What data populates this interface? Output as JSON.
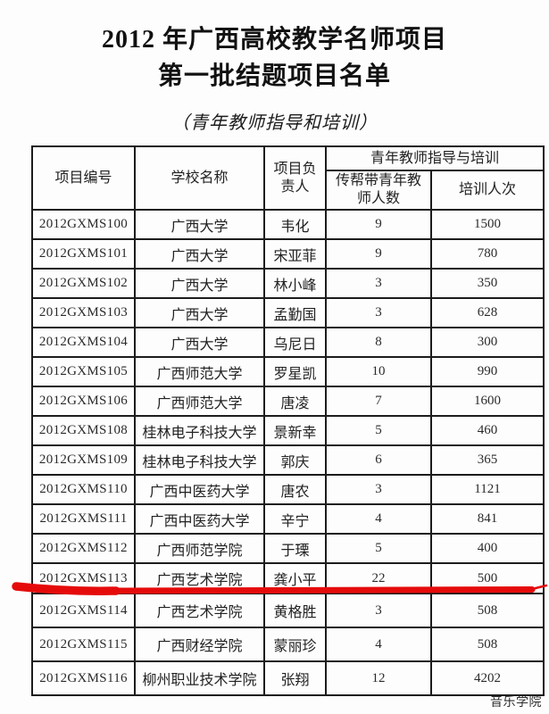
{
  "page": {
    "title_line1": "2012 年广西高校教学名师项目",
    "title_line2": "第一批结题项目名单",
    "subtitle": "（青年教师指导和培训）",
    "footer_note": "音乐学院"
  },
  "table": {
    "headers": {
      "project_code": "项目编号",
      "school": "学校名称",
      "leader": "项目负责人",
      "group": "青年教师指导与培训",
      "mentored": "传帮带青年教师人数",
      "trained": "培训人次"
    },
    "rows": [
      {
        "code": "2012GXMS100",
        "school": "广西大学",
        "leader": "韦化",
        "mentored": "9",
        "trained": "1500"
      },
      {
        "code": "2012GXMS101",
        "school": "广西大学",
        "leader": "宋亚菲",
        "mentored": "9",
        "trained": "780"
      },
      {
        "code": "2012GXMS102",
        "school": "广西大学",
        "leader": "林小峰",
        "mentored": "3",
        "trained": "350"
      },
      {
        "code": "2012GXMS103",
        "school": "广西大学",
        "leader": "孟勤国",
        "mentored": "3",
        "trained": "628"
      },
      {
        "code": "2012GXMS104",
        "school": "广西大学",
        "leader": "乌尼日",
        "mentored": "8",
        "trained": "300"
      },
      {
        "code": "2012GXMS105",
        "school": "广西师范大学",
        "leader": "罗星凯",
        "mentored": "10",
        "trained": "990"
      },
      {
        "code": "2012GXMS106",
        "school": "广西师范大学",
        "leader": "唐凌",
        "mentored": "7",
        "trained": "1600"
      },
      {
        "code": "2012GXMS108",
        "school": "桂林电子科技大学",
        "leader": "景新幸",
        "mentored": "5",
        "trained": "460"
      },
      {
        "code": "2012GXMS109",
        "school": "桂林电子科技大学",
        "leader": "郭庆",
        "mentored": "6",
        "trained": "365"
      },
      {
        "code": "2012GXMS110",
        "school": "广西中医药大学",
        "leader": "唐农",
        "mentored": "3",
        "trained": "1121"
      },
      {
        "code": "2012GXMS111",
        "school": "广西中医药大学",
        "leader": "辛宁",
        "mentored": "4",
        "trained": "841"
      },
      {
        "code": "2012GXMS112",
        "school": "广西师范学院",
        "leader": "于瑮",
        "mentored": "5",
        "trained": "400"
      },
      {
        "code": "2012GXMS113",
        "school": "广西艺术学院",
        "leader": "龚小平",
        "mentored": "22",
        "trained": "500"
      },
      {
        "code": "2012GXMS114",
        "school": "广西艺术学院",
        "leader": "黄格胜",
        "mentored": "3",
        "trained": "508"
      },
      {
        "code": "2012GXMS115",
        "school": "广西财经学院",
        "leader": "蒙丽珍",
        "mentored": "4",
        "trained": "508"
      },
      {
        "code": "2012GXMS116",
        "school": "柳州职业技术学院",
        "leader": "张翔",
        "mentored": "12",
        "trained": "4202"
      }
    ],
    "highlighted_code": "2012GXMS113"
  },
  "annotation": {
    "type": "red-underline",
    "color": "#e50b0b",
    "below_row_code": "2012GXMS113"
  }
}
